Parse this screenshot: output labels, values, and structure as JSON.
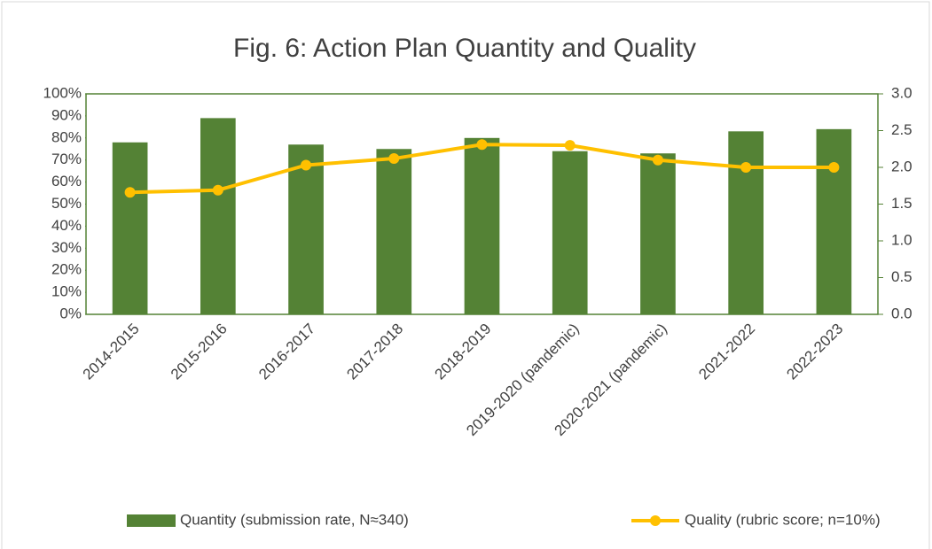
{
  "chart_data": {
    "type": "bar_line",
    "title": "Fig. 6: Action Plan Quantity and Quality",
    "categories": [
      "2014-2015",
      "2015-2016",
      "2016-2017",
      "2017-2018",
      "2018-2019",
      "2019-2020 (pandemic)",
      "2020-2021 (pandemic)",
      "2021-2022",
      "2022-2023"
    ],
    "series": [
      {
        "name": "Quantity (submission rate, N≈340)",
        "type": "bar",
        "color": "#548235",
        "values": [
          78,
          89,
          77,
          75,
          80,
          74,
          73,
          83,
          84
        ]
      },
      {
        "name": "Quality (rubric score; n=10%)",
        "type": "line",
        "color": "#ffc000",
        "axis": "y2",
        "values": [
          1.66,
          1.69,
          2.03,
          2.12,
          2.31,
          2.3,
          2.1,
          2.0,
          2.0
        ]
      }
    ],
    "ylim": [
      0,
      100
    ],
    "yticks": [
      {
        "value": 0,
        "label": "0%"
      },
      {
        "value": 10,
        "label": "10%"
      },
      {
        "value": 20,
        "label": "20%"
      },
      {
        "value": 30,
        "label": "30%"
      },
      {
        "value": 40,
        "label": "40%"
      },
      {
        "value": 50,
        "label": "50%"
      },
      {
        "value": 60,
        "label": "60%"
      },
      {
        "value": 70,
        "label": "70%"
      },
      {
        "value": 80,
        "label": "80%"
      },
      {
        "value": 90,
        "label": "90%"
      },
      {
        "value": 100,
        "label": "100%"
      }
    ],
    "y2lim": [
      0,
      3
    ],
    "y2ticks": [
      {
        "value": 0,
        "label": "0.0"
      },
      0.5,
      {
        "value": 1,
        "label": "1.0"
      },
      1.5,
      {
        "value": 2,
        "label": "2.0"
      },
      2.5,
      {
        "value": 3,
        "label": "3.0"
      }
    ],
    "legend": "bottom"
  }
}
